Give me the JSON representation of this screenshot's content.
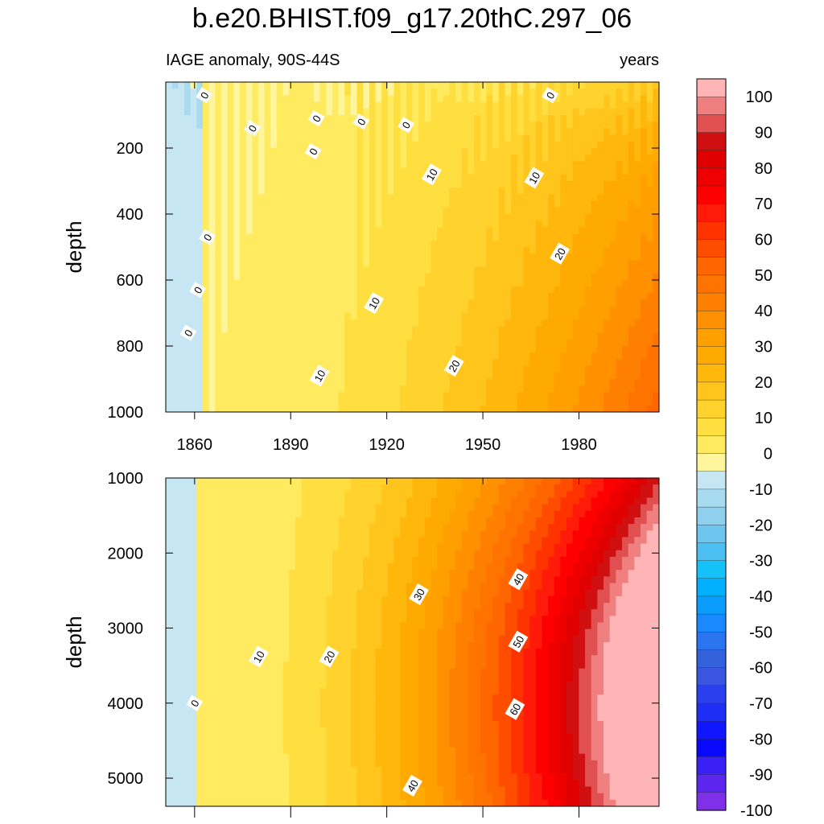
{
  "title": "b.e20.BHIST.f09_g17.20thC.297_06",
  "subtitle_left": "IAGE anomaly, 90S-44S",
  "subtitle_right": "years",
  "chart_data": [
    {
      "type": "heatmap",
      "panel": "upper",
      "xlabel": "",
      "ylabel": "depth",
      "x_ticks": [
        "1860",
        "1890",
        "1920",
        "1950",
        "1980"
      ],
      "y_ticks": [
        "200",
        "400",
        "600",
        "800",
        "1000"
      ],
      "xlim": [
        1851,
        2005
      ],
      "ylim": [
        1000,
        0
      ],
      "y_axis_reversed": true,
      "contour_labels": [
        {
          "text": "0",
          "x": 1863,
          "y": 40
        },
        {
          "text": "0",
          "x": 1878,
          "y": 140
        },
        {
          "text": "0",
          "x": 1898,
          "y": 110
        },
        {
          "text": "0",
          "x": 1912,
          "y": 120
        },
        {
          "text": "0",
          "x": 1926,
          "y": 130
        },
        {
          "text": "0",
          "x": 1897,
          "y": 210
        },
        {
          "text": "0",
          "x": 1971,
          "y": 40
        },
        {
          "text": "0",
          "x": 1864,
          "y": 470
        },
        {
          "text": "0",
          "x": 1861,
          "y": 630
        },
        {
          "text": "0",
          "x": 1858,
          "y": 760
        },
        {
          "text": "10",
          "x": 1934,
          "y": 280
        },
        {
          "text": "10",
          "x": 1966,
          "y": 290
        },
        {
          "text": "10",
          "x": 1916,
          "y": 670
        },
        {
          "text": "10",
          "x": 1899,
          "y": 890
        },
        {
          "text": "20",
          "x": 1974,
          "y": 520
        },
        {
          "text": "20",
          "x": 1941,
          "y": 860
        }
      ]
    },
    {
      "type": "heatmap",
      "panel": "lower",
      "xlabel": "",
      "ylabel": "depth",
      "x_ticks": [],
      "y_ticks": [
        "1000",
        "2000",
        "3000",
        "4000",
        "5000"
      ],
      "xlim": [
        1851,
        2005
      ],
      "ylim": [
        5375,
        1000
      ],
      "y_axis_reversed": true,
      "contour_labels": [
        {
          "text": "0",
          "x": 1860,
          "y": 4000
        },
        {
          "text": "10",
          "x": 1880,
          "y": 3380
        },
        {
          "text": "20",
          "x": 1902,
          "y": 3380
        },
        {
          "text": "30",
          "x": 1930,
          "y": 2550
        },
        {
          "text": "40",
          "x": 1961,
          "y": 2350
        },
        {
          "text": "50",
          "x": 1961,
          "y": 3180
        },
        {
          "text": "60",
          "x": 1960,
          "y": 4080
        },
        {
          "text": "40",
          "x": 1928,
          "y": 5100
        }
      ]
    }
  ],
  "colorbar": {
    "levels": [
      "100",
      "90",
      "80",
      "70",
      "60",
      "50",
      "40",
      "30",
      "20",
      "10",
      "0",
      "-10",
      "-20",
      "-30",
      "-40",
      "-50",
      "-60",
      "-70",
      "-80",
      "-90",
      "-100"
    ],
    "colors": [
      "#ffb5b5",
      "#f08080",
      "#e05050",
      "#d01010",
      "#e00000",
      "#ee0000",
      "#ff0000",
      "#ff1a0a",
      "#ff3300",
      "#ff4d00",
      "#ff6600",
      "#ff7300",
      "#ff8000",
      "#ff9000",
      "#ffa000",
      "#ffaa00",
      "#ffb70c",
      "#ffc51c",
      "#ffd22e",
      "#ffdf40",
      "#ffea60",
      "#fff59c",
      "#c6e6f4",
      "#a8daf0",
      "#8ed0ee",
      "#6ec6ee",
      "#4cc0f2",
      "#14c2f9",
      "#00b0ff",
      "#0a9cff",
      "#1a88ff",
      "#2a74ef",
      "#3462dd",
      "#3a56e0",
      "#2a40ee",
      "#1e2ef5",
      "#1016ff",
      "#0808ff",
      "#3a20f5",
      "#5c26ef",
      "#8030e8"
    ]
  }
}
